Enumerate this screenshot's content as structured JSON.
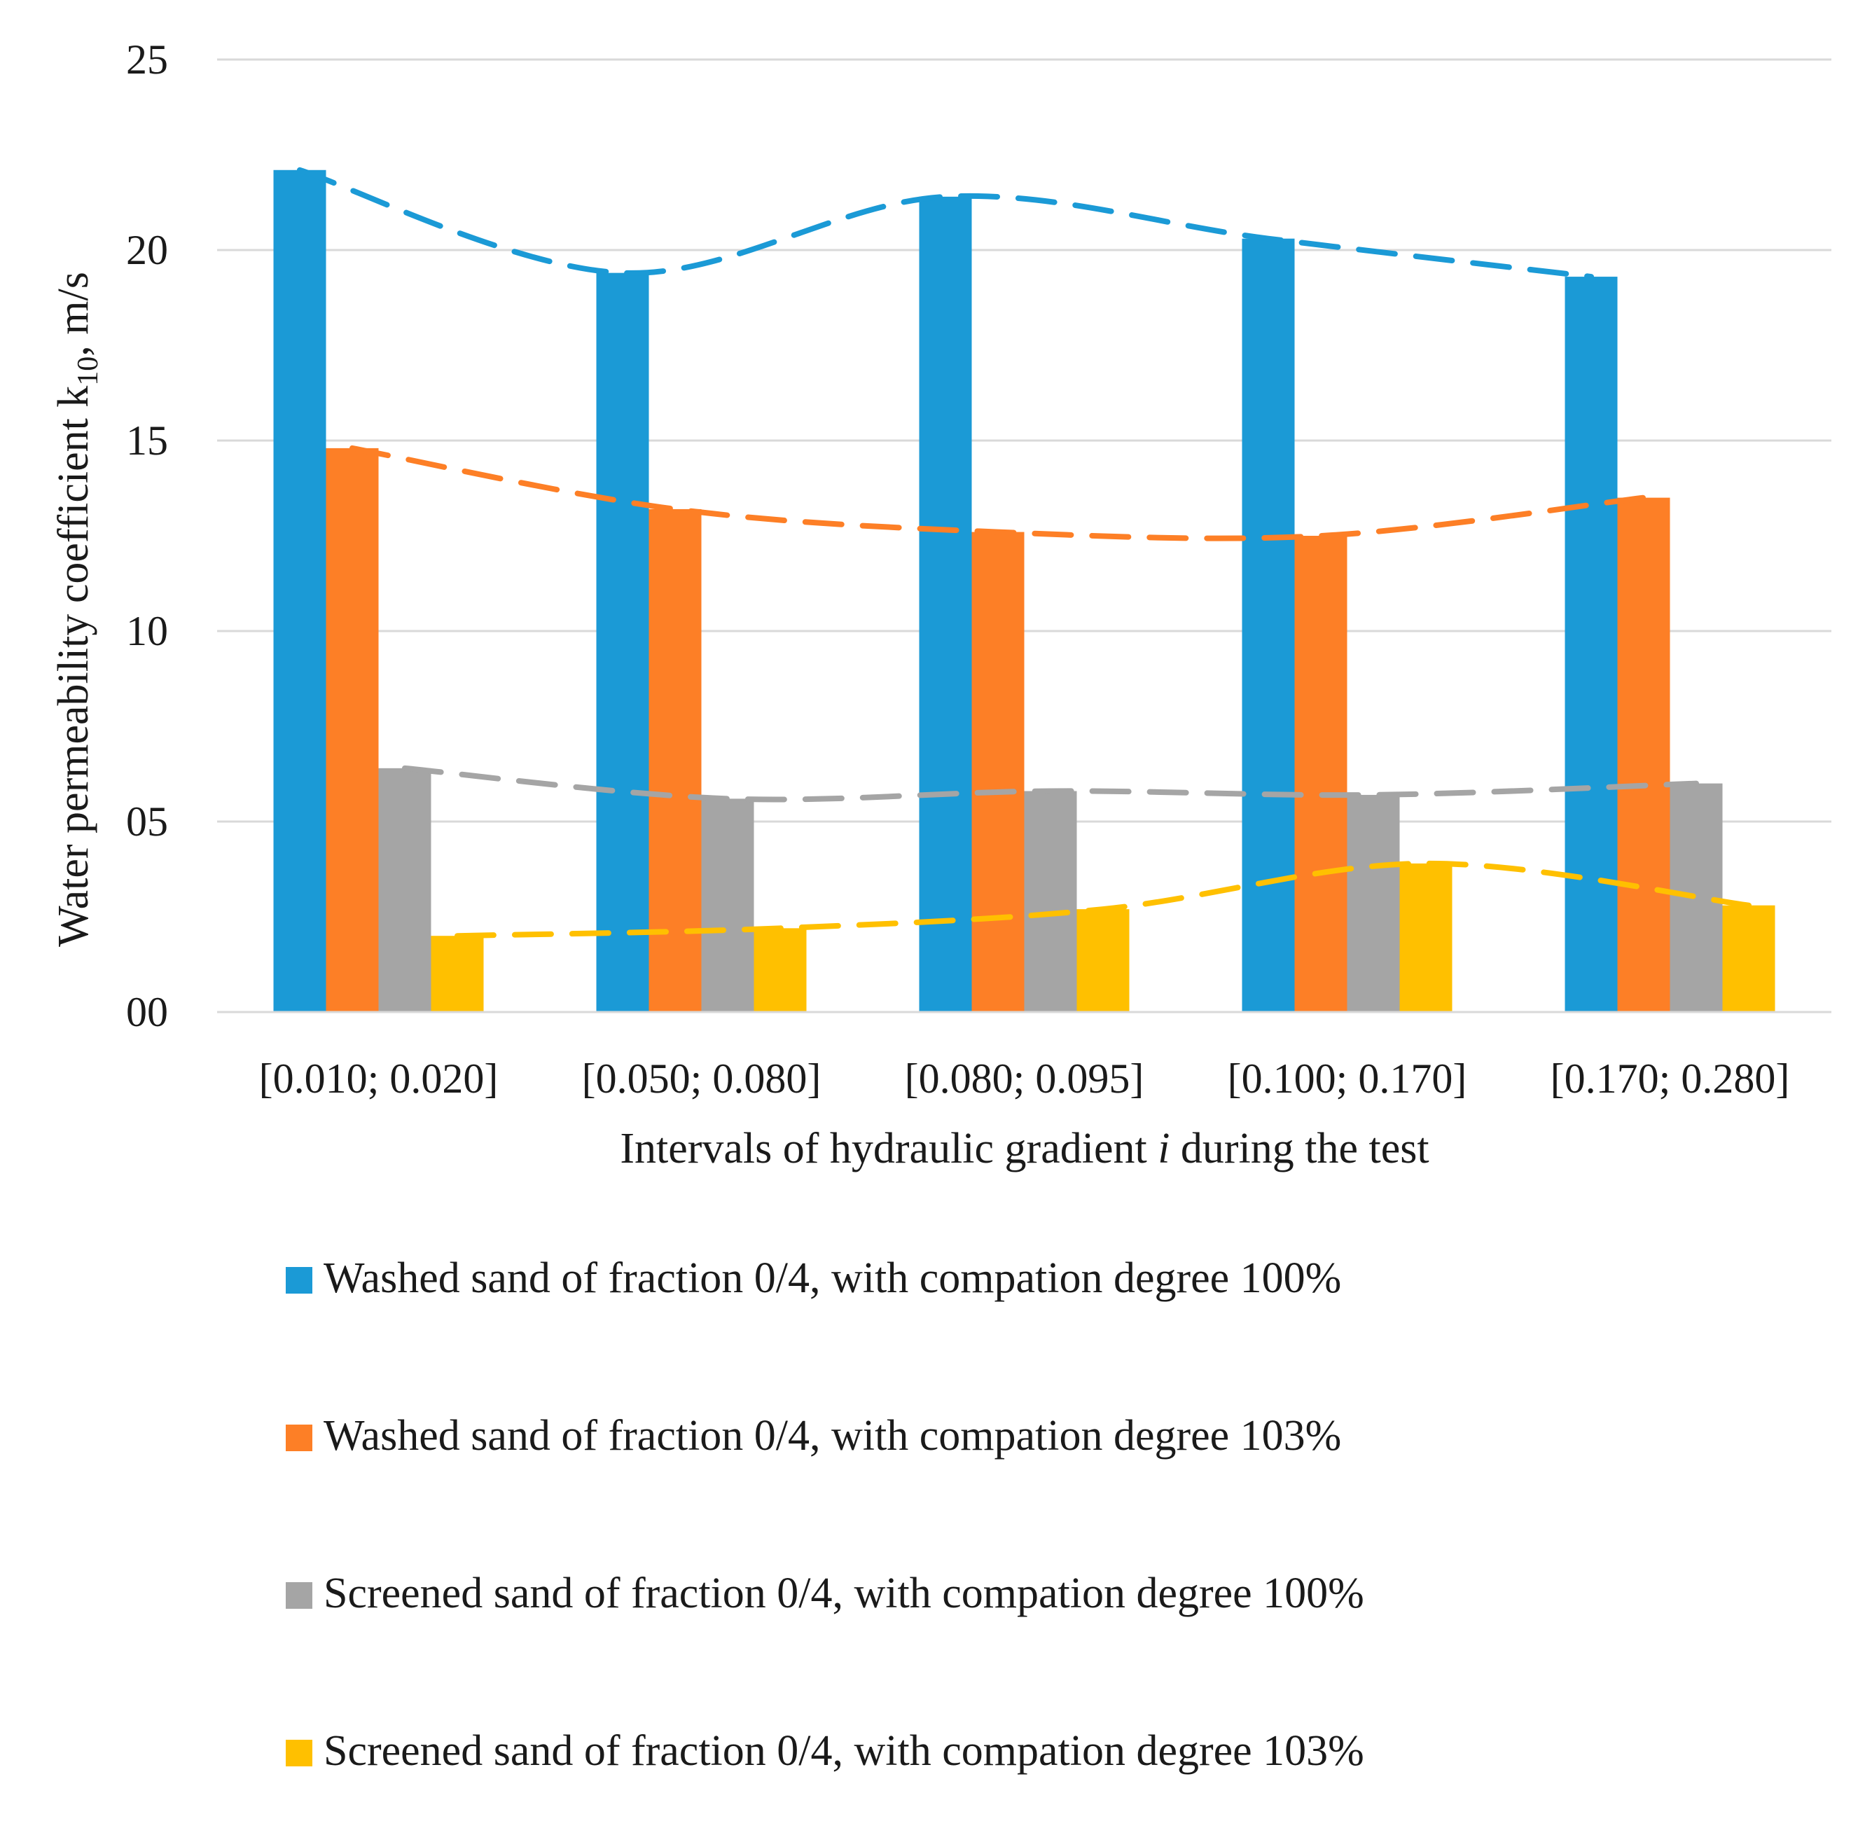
{
  "chart_data": {
    "type": "bar",
    "title": "",
    "xlabel": "Intervals of hydraulic gradient ",
    "xlabel_italic": "i",
    "xlabel_suffix": " during the test",
    "ylabel": "Water permeability coefficient k",
    "ylabel_sub": "10",
    "ylabel_suffix": ", m/s",
    "ylim": [
      0,
      25
    ],
    "yticks": [
      0,
      5,
      10,
      15,
      20,
      25
    ],
    "ytick_labels": [
      "00",
      "05",
      "10",
      "15",
      "20",
      "25"
    ],
    "grid": true,
    "legend_position": "bottom",
    "categories": [
      "[0.010; 0.020]",
      "[0.050; 0.080]",
      "[0.080; 0.095]",
      "[0.100; 0.170]",
      "[0.170; 0.280]"
    ],
    "series": [
      {
        "name": "Washed sand of fraction 0/4, with compation degree  100%",
        "color": "#1b9ad6",
        "values": [
          22.1,
          19.4,
          21.4,
          20.3,
          19.3
        ]
      },
      {
        "name": "Washed sand of fraction 0/4, with compation degree  103%",
        "color": "#fd7f26",
        "values": [
          14.8,
          13.2,
          12.6,
          12.5,
          13.5
        ]
      },
      {
        "name": "Screened sand of fraction 0/4, with compation degree  100%",
        "color": "#a5a5a5",
        "values": [
          6.4,
          5.6,
          5.8,
          5.7,
          6.0
        ]
      },
      {
        "name": "Screened sand of fraction 0/4, with compation degree  103%",
        "color": "#ffc000",
        "values": [
          2.0,
          2.2,
          2.7,
          3.9,
          2.8
        ]
      }
    ],
    "trendlines": {
      "style": "dashed",
      "type": "polynomial"
    }
  }
}
